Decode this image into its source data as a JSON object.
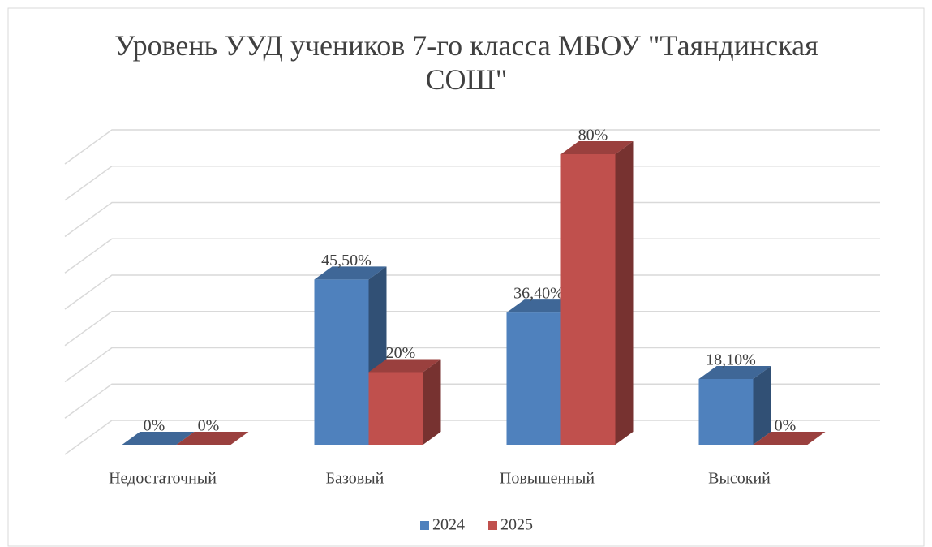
{
  "chart_data": {
    "type": "bar3d",
    "title": "Уровень УУД учеников 7-го класса МБОУ \"Таяндинская СОШ\"",
    "categories": [
      "Недостаточный",
      "Базовый",
      "Повышенный",
      "Высокий"
    ],
    "series": [
      {
        "name": "2024",
        "color": "#4f81bd",
        "values": [
          0,
          45.5,
          36.4,
          18.1
        ],
        "value_labels": [
          "0%",
          "45,50%",
          "36,40%",
          "18,10%"
        ]
      },
      {
        "name": "2025",
        "color": "#c0504d",
        "values": [
          0,
          20,
          80,
          0
        ],
        "value_labels": [
          "0%",
          "20%",
          "80%",
          "0%"
        ]
      }
    ],
    "ylim": [
      0,
      80
    ],
    "yticks": [
      0,
      10,
      20,
      30,
      40,
      50,
      60,
      70,
      80
    ],
    "grid": true,
    "legend": "bottom"
  }
}
